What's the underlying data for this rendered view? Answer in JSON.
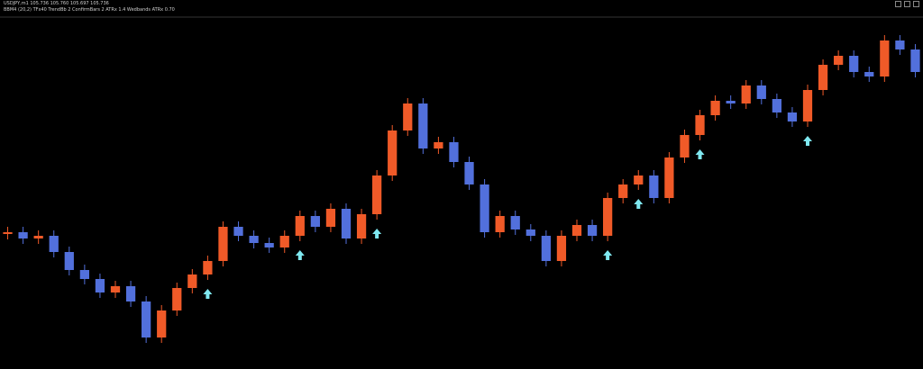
{
  "header": {
    "symbol_line": "USDJPY,m1  105.736 105.760 105.697 105.736",
    "indicator_line": "BBM4 (20,2) TFx40 TrendBb 2 ConfirmBars 2 ATRx 1.4 Wedbands ATRx 0.70"
  },
  "chart_data": {
    "type": "candlestick",
    "ylim": [
      0,
      410
    ],
    "up_color": "#f05a28",
    "down_color": "#5270dc",
    "signal_color": "#7fe8f0",
    "open": [
      150,
      152,
      145,
      148,
      130,
      110,
      100,
      85,
      92,
      75,
      35,
      65,
      90,
      105,
      120,
      158,
      148,
      140,
      135,
      148,
      170,
      158,
      178,
      145,
      172,
      215,
      265,
      295,
      245,
      252,
      230,
      205,
      152,
      170,
      155,
      148,
      120,
      148,
      160,
      148,
      190,
      205,
      215,
      190,
      235,
      260,
      282,
      298,
      295,
      315,
      300,
      285,
      275,
      310,
      338,
      348,
      330,
      325,
      365,
      355
    ],
    "high": [
      158,
      158,
      154,
      154,
      136,
      116,
      106,
      98,
      98,
      81,
      71,
      96,
      111,
      126,
      164,
      164,
      154,
      146,
      154,
      176,
      176,
      184,
      184,
      178,
      221,
      271,
      301,
      301,
      258,
      258,
      236,
      211,
      176,
      176,
      161,
      154,
      154,
      166,
      166,
      196,
      211,
      221,
      221,
      241,
      266,
      288,
      304,
      304,
      321,
      321,
      306,
      291,
      316,
      344,
      354,
      354,
      336,
      371,
      371,
      361
    ],
    "low": [
      144,
      139,
      139,
      124,
      104,
      94,
      79,
      79,
      69,
      29,
      29,
      59,
      84,
      99,
      114,
      142,
      134,
      129,
      129,
      142,
      152,
      152,
      139,
      139,
      166,
      209,
      259,
      239,
      239,
      224,
      199,
      146,
      146,
      149,
      142,
      114,
      114,
      142,
      142,
      142,
      184,
      199,
      184,
      184,
      229,
      254,
      276,
      289,
      289,
      294,
      279,
      269,
      269,
      304,
      332,
      324,
      319,
      319,
      349,
      324
    ],
    "close": [
      152,
      145,
      148,
      130,
      110,
      100,
      85,
      92,
      75,
      35,
      65,
      90,
      105,
      120,
      158,
      148,
      140,
      135,
      148,
      170,
      158,
      178,
      145,
      172,
      215,
      265,
      295,
      245,
      252,
      230,
      205,
      152,
      170,
      155,
      148,
      120,
      148,
      160,
      148,
      190,
      205,
      215,
      190,
      235,
      260,
      282,
      298,
      295,
      315,
      300,
      285,
      275,
      310,
      338,
      348,
      330,
      325,
      365,
      355,
      330
    ],
    "signals": [
      13,
      19,
      24,
      39,
      41,
      45,
      52
    ]
  }
}
